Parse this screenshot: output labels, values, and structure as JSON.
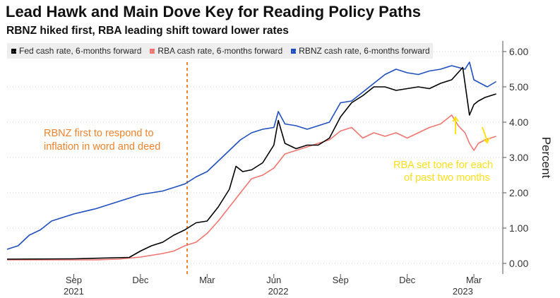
{
  "title": "Lead Hawk and Main Dove Key for Reading Policy Paths",
  "subtitle": "RBNZ hiked first, RBA leading shift toward lower rates",
  "chart_data": {
    "type": "line",
    "ylabel": "Percent",
    "ylim": [
      -0.3,
      6.3
    ],
    "y_ticks": [
      "0.00",
      "1.00",
      "2.00",
      "3.00",
      "4.00",
      "5.00",
      "6.00"
    ],
    "x_range": [
      0,
      22.3
    ],
    "x_ticks": [
      {
        "label": "Sep",
        "x": 3.0
      },
      {
        "label": "Dec",
        "x": 6.0
      },
      {
        "label": "Mar",
        "x": 9.0
      },
      {
        "label": "Jun",
        "x": 12.0
      },
      {
        "label": "Sep",
        "x": 15.0
      },
      {
        "label": "Dec",
        "x": 18.0
      },
      {
        "label": "Mar",
        "x": 21.0
      }
    ],
    "year_labels": [
      {
        "label": "2021",
        "x": 3.0
      },
      {
        "label": "2022",
        "x": 12.2
      },
      {
        "label": "2023",
        "x": 20.5
      }
    ],
    "series": [
      {
        "name": "Fed cash rate, 6-months forward",
        "color": "#000000",
        "x": [
          0,
          3.0,
          5.5,
          6.0,
          6.5,
          7.0,
          7.5,
          8.0,
          8.5,
          9.0,
          9.5,
          10.0,
          10.3,
          10.6,
          11.0,
          11.5,
          12.0,
          12.2,
          12.5,
          13.0,
          13.5,
          14.0,
          14.5,
          15.0,
          15.5,
          16.0,
          16.5,
          17.0,
          17.5,
          18.0,
          18.5,
          19.0,
          19.5,
          20.0,
          20.5,
          20.8,
          21.0,
          21.2,
          21.5,
          22.0
        ],
        "values": [
          0.12,
          0.13,
          0.17,
          0.35,
          0.5,
          0.6,
          0.8,
          0.95,
          1.15,
          1.2,
          1.6,
          2.1,
          2.75,
          2.6,
          2.65,
          2.85,
          3.35,
          4.05,
          3.4,
          3.25,
          3.35,
          3.35,
          3.55,
          4.15,
          4.55,
          4.75,
          5.0,
          5.0,
          4.9,
          4.95,
          5.0,
          4.95,
          5.1,
          5.2,
          5.55,
          4.2,
          4.5,
          4.6,
          4.7,
          4.8
        ]
      },
      {
        "name": "RBA cash rate, 6-months forward",
        "color": "#f07570",
        "x": [
          0,
          3.0,
          4.0,
          5.0,
          6.0,
          7.0,
          7.5,
          8.0,
          8.5,
          9.0,
          9.5,
          10.0,
          10.5,
          11.0,
          11.5,
          12.0,
          12.5,
          13.0,
          13.5,
          14.0,
          14.5,
          15.0,
          15.5,
          16.0,
          16.5,
          17.0,
          17.5,
          18.0,
          18.5,
          19.0,
          19.5,
          20.0,
          20.3,
          20.6,
          20.8,
          21.0,
          21.2,
          21.5,
          22.0
        ],
        "values": [
          0.1,
          0.1,
          0.1,
          0.12,
          0.18,
          0.28,
          0.35,
          0.5,
          0.6,
          0.85,
          1.2,
          1.6,
          2.0,
          2.4,
          2.5,
          2.7,
          3.1,
          3.2,
          3.3,
          3.4,
          3.5,
          3.75,
          3.85,
          3.55,
          3.7,
          3.6,
          3.7,
          3.55,
          3.7,
          3.85,
          3.95,
          4.2,
          3.9,
          3.7,
          3.4,
          3.2,
          3.4,
          3.5,
          3.6
        ]
      },
      {
        "name": "RBNZ cash rate, 6-months forward",
        "color": "#1f4fbf",
        "x": [
          0,
          0.5,
          1.0,
          1.5,
          2.0,
          3.0,
          4.0,
          5.0,
          6.0,
          7.0,
          7.5,
          8.0,
          8.5,
          9.0,
          9.5,
          10.0,
          10.5,
          11.0,
          11.5,
          12.0,
          12.2,
          12.5,
          13.0,
          13.5,
          14.0,
          14.5,
          15.0,
          15.5,
          16.0,
          16.5,
          17.0,
          17.5,
          18.0,
          18.5,
          19.0,
          19.5,
          20.0,
          20.3,
          20.6,
          20.8,
          21.0,
          21.3,
          21.6,
          22.0
        ],
        "values": [
          0.4,
          0.5,
          0.8,
          0.95,
          1.2,
          1.4,
          1.55,
          1.75,
          1.95,
          2.05,
          2.15,
          2.25,
          2.45,
          2.6,
          2.9,
          3.2,
          3.5,
          3.7,
          3.8,
          3.85,
          4.3,
          3.95,
          3.9,
          3.8,
          3.9,
          4.0,
          4.55,
          4.6,
          4.85,
          5.1,
          5.35,
          5.5,
          5.4,
          5.35,
          5.45,
          5.5,
          5.6,
          5.55,
          5.5,
          5.7,
          5.2,
          5.1,
          5.0,
          5.15
        ]
      }
    ],
    "annotations": [
      {
        "text": "RBNZ first to respond to",
        "color": "#f0832d"
      },
      {
        "text": "inflation in word and deed",
        "color": "#f0832d"
      },
      {
        "text": "RBA set tone for each",
        "color": "#ffe01a"
      },
      {
        "text": "of past two months",
        "color": "#ffe01a"
      }
    ],
    "event_marker": {
      "x": 8.1,
      "color": "#f0832d",
      "style": "dashed"
    }
  }
}
